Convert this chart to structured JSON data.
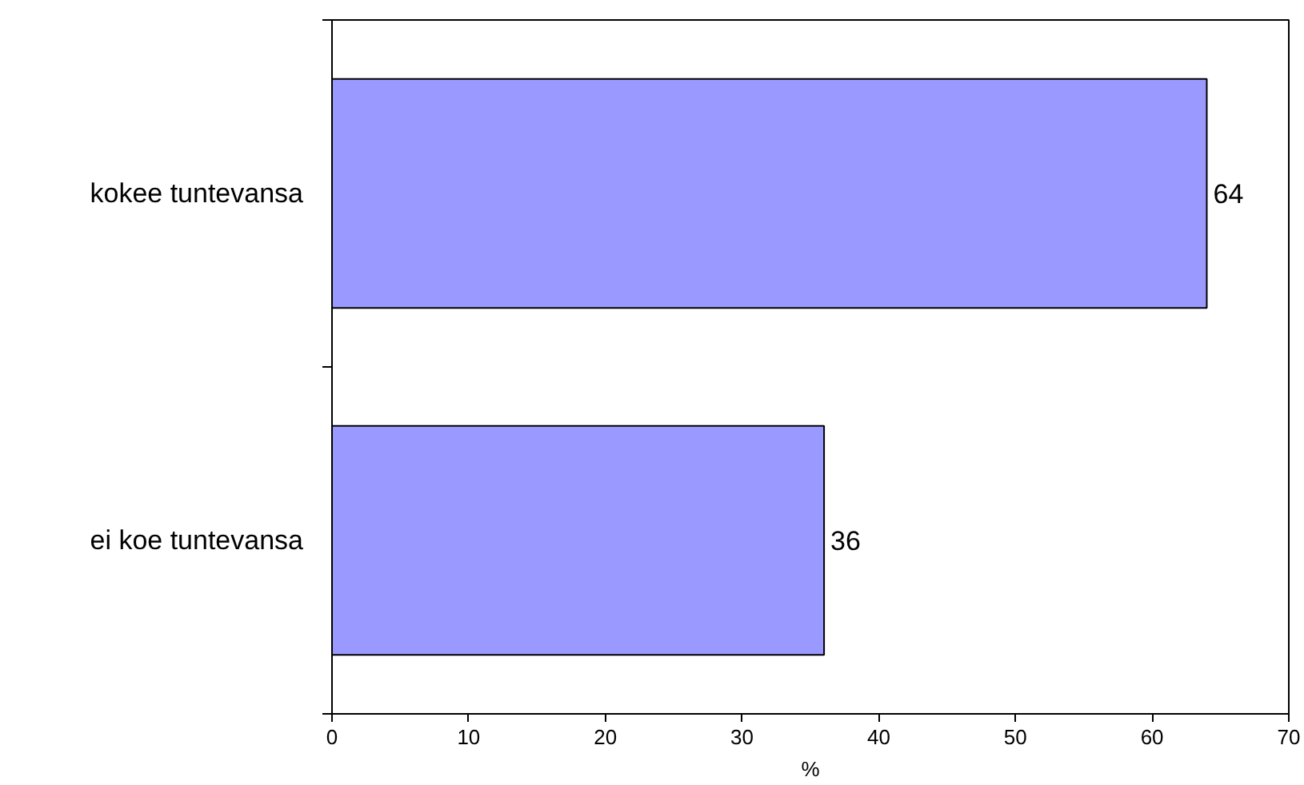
{
  "chart_data": {
    "type": "bar",
    "orientation": "horizontal",
    "categories": [
      "kokee tuntevansa",
      "ei koe tuntevansa"
    ],
    "values": [
      64,
      36
    ],
    "color": "#9999ff",
    "xlabel": "%",
    "xlim": [
      0,
      70
    ],
    "xticks": [
      0,
      10,
      20,
      30,
      40,
      50,
      60,
      70
    ],
    "grid": false,
    "data_labels": true
  }
}
